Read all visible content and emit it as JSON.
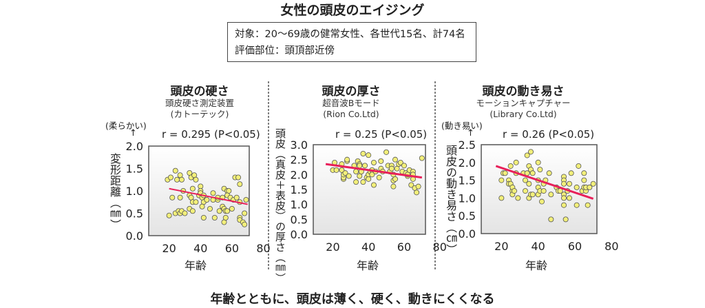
{
  "title": "女性の頭皮のエイジング",
  "info": {
    "line1": "対象：20〜69歳の健常女性、各世代15名、計74名",
    "line2": "評価部位：頭頂部近傍"
  },
  "footer": "年齢とともに、頭皮は薄く、硬く、動きにくくなる",
  "colors": {
    "point_fill": "#f2ef7a",
    "point_stroke": "#555555",
    "trend": "#e8205a"
  },
  "chart_data": [
    {
      "type": "scatter",
      "title": "頭皮の硬さ",
      "subtitle1": "頭皮硬さ測定装置",
      "subtitle2": "(カトーテック)",
      "direction_note": "(柔らかい)",
      "stat": "r = 0.295 (P<0.05)",
      "xlabel": "年齢",
      "ylabel": "変形距離（㎜）",
      "xlim": [
        7,
        71
      ],
      "ylim": [
        0,
        2.0
      ],
      "xticks": [
        20,
        40,
        60,
        80
      ],
      "yticks": [
        "0.0",
        "0.5",
        "1.0",
        "1.5",
        "2.0"
      ],
      "trend": [
        [
          20,
          1.05
        ],
        [
          70,
          0.7
        ]
      ],
      "points": [
        [
          19,
          1.25
        ],
        [
          21,
          1.3
        ],
        [
          22,
          0.85
        ],
        [
          24,
          1.45
        ],
        [
          25,
          1.25
        ],
        [
          27,
          1.35
        ],
        [
          28,
          1.25
        ],
        [
          27,
          0.85
        ],
        [
          20,
          0.45
        ],
        [
          24,
          0.5
        ],
        [
          26,
          0.55
        ],
        [
          27,
          0.5
        ],
        [
          28,
          0.55
        ],
        [
          30,
          0.5
        ],
        [
          29,
          1.0
        ],
        [
          33,
          1.4
        ],
        [
          34,
          1.3
        ],
        [
          36,
          1.35
        ],
        [
          37,
          1.25
        ],
        [
          33,
          0.9
        ],
        [
          35,
          1.05
        ],
        [
          34,
          0.85
        ],
        [
          35,
          0.75
        ],
        [
          37,
          0.75
        ],
        [
          33,
          0.6
        ],
        [
          35,
          0.55
        ],
        [
          39,
          0.9
        ],
        [
          40,
          1.1
        ],
        [
          40,
          1.0
        ],
        [
          40,
          0.95
        ],
        [
          41,
          0.85
        ],
        [
          42,
          0.9
        ],
        [
          42,
          0.75
        ],
        [
          44,
          0.8
        ],
        [
          41,
          0.65
        ],
        [
          46,
          0.6
        ],
        [
          42,
          0.4
        ],
        [
          48,
          0.95
        ],
        [
          48,
          0.8
        ],
        [
          49,
          0.4
        ],
        [
          51,
          0.8
        ],
        [
          51,
          0.85
        ],
        [
          52,
          0.55
        ],
        [
          54,
          0.85
        ],
        [
          54,
          0.65
        ],
        [
          55,
          0.6
        ],
        [
          56,
          0.55
        ],
        [
          57,
          0.55
        ],
        [
          55,
          0.3
        ],
        [
          56,
          0.4
        ],
        [
          55,
          1.05
        ],
        [
          57,
          1.0
        ],
        [
          58,
          1.0
        ],
        [
          57,
          0.9
        ],
        [
          59,
          0.85
        ],
        [
          61,
          0.8
        ],
        [
          62,
          1.3
        ],
        [
          64,
          1.3
        ],
        [
          65,
          1.15
        ],
        [
          63,
          0.85
        ],
        [
          65,
          0.75
        ],
        [
          65,
          0.4
        ],
        [
          65,
          0.35
        ],
        [
          67,
          0.3
        ],
        [
          68,
          0.25
        ],
        [
          68,
          0.5
        ],
        [
          69,
          0.8
        ],
        [
          60,
          0.6
        ]
      ]
    },
    {
      "type": "scatter",
      "title": "頭皮の厚さ",
      "subtitle1": "超音波Bモード",
      "subtitle2": "(Rion Co.Ltd)",
      "stat": "r = 0.25 (P<0.05)",
      "xlabel": "年齢",
      "ylabel": "頭皮（真皮＋表皮）の厚さ（㎜）",
      "xlim": [
        9,
        72
      ],
      "ylim": [
        0,
        3.0
      ],
      "xticks": [
        20,
        40,
        60,
        80
      ],
      "yticks": [
        "0.0",
        "0.5",
        "1.0",
        "1.5",
        "2.0",
        "2.5",
        "3.0"
      ],
      "trend": [
        [
          16,
          2.35
        ],
        [
          70,
          1.9
        ]
      ],
      "points": [
        [
          20,
          2.15
        ],
        [
          21,
          2.4
        ],
        [
          22,
          2.15
        ],
        [
          25,
          2.15
        ],
        [
          25,
          2.35
        ],
        [
          26,
          1.85
        ],
        [
          26,
          1.9
        ],
        [
          26,
          2.0
        ],
        [
          27,
          2.05
        ],
        [
          28,
          2.45
        ],
        [
          28,
          2.5
        ],
        [
          29,
          1.95
        ],
        [
          32,
          2.3
        ],
        [
          33,
          2.1
        ],
        [
          33,
          1.75
        ],
        [
          34,
          2.45
        ],
        [
          35,
          2.35
        ],
        [
          35,
          2.3
        ],
        [
          35,
          1.95
        ],
        [
          36,
          2.1
        ],
        [
          37,
          2.7
        ],
        [
          37,
          1.75
        ],
        [
          38,
          2.3
        ],
        [
          39,
          1.9
        ],
        [
          40,
          2.0
        ],
        [
          40,
          2.65
        ],
        [
          40,
          1.85
        ],
        [
          41,
          2.1
        ],
        [
          42,
          2.15
        ],
        [
          42,
          2.0
        ],
        [
          43,
          2.4
        ],
        [
          43,
          1.65
        ],
        [
          44,
          2.1
        ],
        [
          46,
          1.9
        ],
        [
          47,
          2.45
        ],
        [
          47,
          2.2
        ],
        [
          48,
          2.1
        ],
        [
          50,
          2.75
        ],
        [
          51,
          2.3
        ],
        [
          52,
          2.1
        ],
        [
          53,
          2.3
        ],
        [
          53,
          2.2
        ],
        [
          54,
          2.0
        ],
        [
          54,
          1.8
        ],
        [
          54,
          1.6
        ],
        [
          55,
          1.85
        ],
        [
          55,
          2.5
        ],
        [
          56,
          2.2
        ],
        [
          57,
          2.35
        ],
        [
          58,
          2.4
        ],
        [
          59,
          2.1
        ],
        [
          60,
          2.3
        ],
        [
          61,
          2.05
        ],
        [
          62,
          1.95
        ],
        [
          62,
          2.0
        ],
        [
          63,
          2.15
        ],
        [
          64,
          1.65
        ],
        [
          65,
          2.1
        ],
        [
          65,
          1.85
        ],
        [
          65,
          2.0
        ],
        [
          66,
          1.55
        ],
        [
          67,
          1.4
        ],
        [
          68,
          1.6
        ],
        [
          70,
          2.55
        ]
      ]
    },
    {
      "type": "scatter",
      "title": "頭皮の動き易さ",
      "subtitle1": "モーションキャプチャー",
      "subtitle2": "(Library Co.Ltd)",
      "direction_note": "(動き易い)",
      "stat": "r = 0.26 (P<0.05)",
      "xlabel": "年齢",
      "ylabel": "頭皮の動き易さ（㎝）",
      "xlim": [
        9,
        72
      ],
      "ylim": [
        0,
        2.5
      ],
      "xticks": [
        20,
        40,
        60,
        80
      ],
      "yticks": [
        "0.0",
        "0.5",
        "1.0",
        "1.5",
        "2.0",
        "2.5"
      ],
      "trend": [
        [
          17,
          1.9
        ],
        [
          70,
          0.98
        ]
      ],
      "points": [
        [
          20,
          1.5
        ],
        [
          20,
          1.0
        ],
        [
          21,
          1.7
        ],
        [
          22,
          1.7
        ],
        [
          24,
          1.5
        ],
        [
          24,
          1.4
        ],
        [
          25,
          1.9
        ],
        [
          25,
          1.4
        ],
        [
          26,
          1.2
        ],
        [
          26,
          1.1
        ],
        [
          26,
          1.3
        ],
        [
          27,
          1.2
        ],
        [
          28,
          2.0
        ],
        [
          28,
          1.7
        ],
        [
          29,
          1.0
        ],
        [
          32,
          1.7
        ],
        [
          33,
          1.5
        ],
        [
          33,
          1.2
        ],
        [
          34,
          2.2
        ],
        [
          34,
          1.7
        ],
        [
          35,
          1.9
        ],
        [
          35,
          1.4
        ],
        [
          35,
          1.0
        ],
        [
          36,
          2.3
        ],
        [
          36,
          1.8
        ],
        [
          36,
          1.1
        ],
        [
          37,
          1.7
        ],
        [
          37,
          1.1
        ],
        [
          40,
          2.0
        ],
        [
          40,
          1.5
        ],
        [
          40,
          1.3
        ],
        [
          40,
          1.1
        ],
        [
          41,
          1.8
        ],
        [
          41,
          1.2
        ],
        [
          42,
          0.9
        ],
        [
          43,
          1.4
        ],
        [
          43,
          1.2
        ],
        [
          44,
          1.5
        ],
        [
          46,
          1.7
        ],
        [
          47,
          1.1
        ],
        [
          47,
          0.4
        ],
        [
          50,
          1.3
        ],
        [
          51,
          1.2
        ],
        [
          52,
          1.2
        ],
        [
          54,
          1.6
        ],
        [
          54,
          1.5
        ],
        [
          54,
          1.4
        ],
        [
          54,
          1.1
        ],
        [
          54,
          1.0
        ],
        [
          54,
          0.8
        ],
        [
          55,
          0.4
        ],
        [
          56,
          1.2
        ],
        [
          57,
          1.4
        ],
        [
          57,
          1.0
        ],
        [
          58,
          1.7
        ],
        [
          61,
          1.3
        ],
        [
          61,
          0.8
        ],
        [
          62,
          1.9
        ],
        [
          64,
          1.2
        ],
        [
          65,
          1.7
        ],
        [
          65,
          1.5
        ],
        [
          65,
          1.3
        ],
        [
          66,
          1.2
        ],
        [
          66,
          1.3
        ],
        [
          67,
          0.8
        ],
        [
          68,
          1.3
        ],
        [
          70,
          1.4
        ]
      ]
    }
  ]
}
